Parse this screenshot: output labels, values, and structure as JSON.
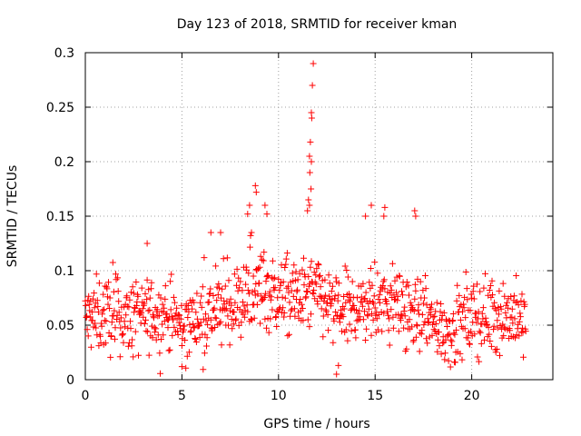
{
  "chart_data": {
    "type": "scatter",
    "title": "Day 123 of 2018, SRMTID for receiver kman",
    "xlabel": "GPS time / hours",
    "ylabel": "SRMTID / TECUs",
    "xlim": [
      0,
      24.2
    ],
    "ylim": [
      0,
      0.3
    ],
    "grid": true,
    "marker": "+",
    "color": "#ff0000",
    "x_ticks": [
      0,
      5,
      10,
      15,
      20
    ],
    "x_tick_labels": [
      "0",
      "5",
      "10",
      "15",
      "20"
    ],
    "y_ticks": [
      0,
      0.05,
      0.1,
      0.15,
      0.2,
      0.25,
      0.3
    ],
    "y_tick_labels": [
      "0",
      "0.05",
      "0.1",
      "0.15",
      "0.2",
      "0.25",
      "0.3"
    ],
    "series": [
      {
        "name": "SRMTID",
        "sample_interval_hours": 0.05,
        "x_range": [
          0,
          22.8
        ],
        "baseline_profile": [
          {
            "x": 0,
            "y": 0.055
          },
          {
            "x": 1,
            "y": 0.06
          },
          {
            "x": 2,
            "y": 0.055
          },
          {
            "x": 3,
            "y": 0.058
          },
          {
            "x": 4,
            "y": 0.06
          },
          {
            "x": 5,
            "y": 0.048
          },
          {
            "x": 6,
            "y": 0.058
          },
          {
            "x": 7,
            "y": 0.065
          },
          {
            "x": 8,
            "y": 0.07
          },
          {
            "x": 9,
            "y": 0.085
          },
          {
            "x": 10,
            "y": 0.075
          },
          {
            "x": 11,
            "y": 0.075
          },
          {
            "x": 12,
            "y": 0.08
          },
          {
            "x": 13,
            "y": 0.06
          },
          {
            "x": 14,
            "y": 0.065
          },
          {
            "x": 15,
            "y": 0.07
          },
          {
            "x": 16,
            "y": 0.07
          },
          {
            "x": 17,
            "y": 0.06
          },
          {
            "x": 18,
            "y": 0.05
          },
          {
            "x": 19,
            "y": 0.045
          },
          {
            "x": 20,
            "y": 0.055
          },
          {
            "x": 21,
            "y": 0.06
          },
          {
            "x": 22,
            "y": 0.06
          },
          {
            "x": 22.8,
            "y": 0.05
          }
        ],
        "spread": 0.017,
        "peaks": [
          {
            "x": 11.8,
            "y": 0.29
          },
          {
            "x": 11.75,
            "y": 0.27
          },
          {
            "x": 11.7,
            "y": 0.245
          },
          {
            "x": 11.72,
            "y": 0.24
          },
          {
            "x": 11.65,
            "y": 0.218
          },
          {
            "x": 11.6,
            "y": 0.205
          },
          {
            "x": 11.7,
            "y": 0.2
          },
          {
            "x": 11.62,
            "y": 0.19
          },
          {
            "x": 11.68,
            "y": 0.175
          },
          {
            "x": 11.55,
            "y": 0.165
          },
          {
            "x": 11.6,
            "y": 0.16
          },
          {
            "x": 11.5,
            "y": 0.155
          },
          {
            "x": 8.8,
            "y": 0.178
          },
          {
            "x": 8.85,
            "y": 0.172
          },
          {
            "x": 8.5,
            "y": 0.16
          },
          {
            "x": 8.4,
            "y": 0.152
          },
          {
            "x": 9.3,
            "y": 0.16
          },
          {
            "x": 9.4,
            "y": 0.152
          },
          {
            "x": 14.8,
            "y": 0.16
          },
          {
            "x": 14.5,
            "y": 0.15
          },
          {
            "x": 15.5,
            "y": 0.158
          },
          {
            "x": 15.45,
            "y": 0.15
          },
          {
            "x": 17.05,
            "y": 0.155
          },
          {
            "x": 17.1,
            "y": 0.15
          },
          {
            "x": 13.0,
            "y": 0.005
          },
          {
            "x": 13.1,
            "y": 0.013
          },
          {
            "x": 5.0,
            "y": 0.012
          },
          {
            "x": 3.2,
            "y": 0.125
          },
          {
            "x": 6.5,
            "y": 0.135
          },
          {
            "x": 7.0,
            "y": 0.135
          }
        ]
      }
    ]
  }
}
